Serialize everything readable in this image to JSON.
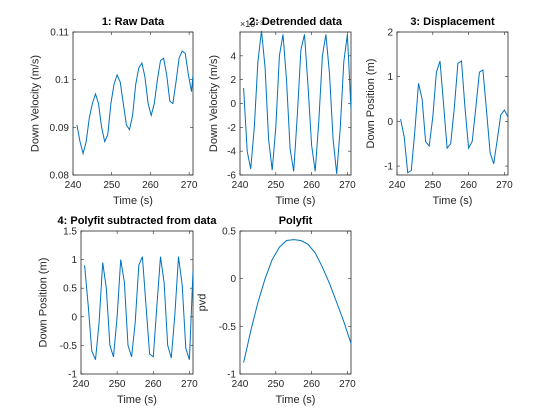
{
  "colors": {
    "series": "#0072BD",
    "axes": "#262626",
    "background": "#ffffff"
  },
  "chart_data": [
    {
      "type": "line",
      "title": "1: Raw Data",
      "xlabel": "Time (s)",
      "ylabel": "Down Velocity (m/s)",
      "xlim": [
        240,
        271
      ],
      "ylim": [
        0.08,
        0.11
      ],
      "xticks": [
        240,
        250,
        260,
        270
      ],
      "xtick_labels": [
        "240",
        "250",
        "260",
        "270"
      ],
      "yticks": [
        0.08,
        0.09,
        0.1,
        0.11
      ],
      "ytick_labels": [
        "0.08",
        "0.09",
        "0.1",
        "0.11"
      ],
      "exponent_label": "",
      "series": [
        {
          "x": [
            241,
            241.8,
            242.6,
            243.4,
            244.2,
            245,
            245.8,
            246.6,
            247.4,
            248.2,
            249,
            249.8,
            250.6,
            251.4,
            252.2,
            253,
            253.8,
            254.6,
            255.4,
            256.2,
            257,
            257.8,
            258.6,
            259.4,
            260.2,
            261,
            261.8,
            262.6,
            263.4,
            264.2,
            265,
            265.8,
            266.6,
            267.4,
            268.2,
            269,
            269.8,
            270.6,
            271
          ],
          "y": [
            0.0905,
            0.087,
            0.0845,
            0.087,
            0.092,
            0.095,
            0.097,
            0.095,
            0.09,
            0.087,
            0.0885,
            0.095,
            0.099,
            0.101,
            0.0995,
            0.095,
            0.0905,
            0.0895,
            0.0925,
            0.099,
            0.1025,
            0.1035,
            0.1005,
            0.095,
            0.0925,
            0.095,
            0.1,
            0.104,
            0.1045,
            0.101,
            0.0955,
            0.095,
            0.0995,
            0.1045,
            0.106,
            0.1055,
            0.101,
            0.0975,
            0.101
          ]
        }
      ]
    },
    {
      "type": "line",
      "title": "2: Detrended data",
      "xlabel": "Time (s)",
      "ylabel": "Down Velocity (m/s)",
      "xlim": [
        240,
        271
      ],
      "ylim": [
        -6,
        6
      ],
      "xticks": [
        240,
        250,
        260,
        270
      ],
      "xtick_labels": [
        "240",
        "250",
        "260",
        "270"
      ],
      "yticks": [
        -6,
        -4,
        -2,
        0,
        2,
        4
      ],
      "ytick_labels": [
        "-6",
        "-4",
        "-2",
        "0",
        "2",
        "4"
      ],
      "exponent_label": "×10⁻³",
      "series": [
        {
          "x": [
            241,
            242,
            243,
            244,
            245,
            246,
            247,
            248,
            249,
            250,
            251,
            252,
            253,
            254,
            255,
            256,
            257,
            258,
            259,
            260,
            261,
            262,
            263,
            264,
            265,
            266,
            267,
            268,
            269,
            270,
            271
          ],
          "y": [
            1.3,
            -4.0,
            -5.5,
            -2.0,
            3.5,
            6.1,
            3.0,
            -3.0,
            -5.6,
            -2.0,
            4.0,
            5.8,
            2.0,
            -3.8,
            -5.7,
            -1.0,
            4.5,
            5.8,
            1.5,
            -3.5,
            -5.7,
            -1.5,
            4.0,
            5.8,
            2.5,
            -3.0,
            -5.9,
            -2.0,
            3.5,
            5.8,
            -0.5
          ]
        }
      ]
    },
    {
      "type": "line",
      "title": "3: Displacement",
      "xlabel": "Time (s)",
      "ylabel": "Down Position (m)",
      "xlim": [
        240,
        271
      ],
      "ylim": [
        -1.2,
        2
      ],
      "xticks": [
        240,
        250,
        260,
        270
      ],
      "xtick_labels": [
        "240",
        "250",
        "260",
        "270"
      ],
      "yticks": [
        -1,
        0,
        1,
        2
      ],
      "ytick_labels": [
        "-1",
        "0",
        "1",
        "2"
      ],
      "exponent_label": "",
      "series": [
        {
          "x": [
            241,
            242,
            243,
            244,
            245,
            246,
            247,
            248,
            249,
            250,
            251,
            252,
            253,
            254,
            255,
            256,
            257,
            258,
            259,
            260,
            261,
            262,
            263,
            264,
            265,
            266,
            267,
            268,
            269,
            270,
            271
          ],
          "y": [
            0.05,
            -0.35,
            -1.15,
            -1.1,
            -0.2,
            0.85,
            0.5,
            -0.45,
            -0.55,
            0.1,
            1.1,
            1.35,
            0.4,
            -0.6,
            -0.5,
            0.3,
            1.3,
            1.35,
            0.3,
            -0.6,
            -0.45,
            0.3,
            1.1,
            1.15,
            0.25,
            -0.7,
            -0.95,
            -0.4,
            0.15,
            0.25,
            0.1
          ]
        }
      ]
    },
    {
      "type": "line",
      "title": "4: Polyfit subtracted from data",
      "xlabel": "Time (s)",
      "ylabel": "Down Position (m)",
      "xlim": [
        240,
        271
      ],
      "ylim": [
        -1,
        1.5
      ],
      "xticks": [
        240,
        250,
        260,
        270
      ],
      "xtick_labels": [
        "240",
        "250",
        "260",
        "270"
      ],
      "yticks": [
        -1,
        -0.5,
        0,
        0.5,
        1,
        1.5
      ],
      "ytick_labels": [
        "-1",
        "-0.5",
        "0",
        "0.5",
        "1",
        "1.5"
      ],
      "exponent_label": "",
      "series": [
        {
          "x": [
            241,
            242,
            243,
            244,
            245,
            246,
            247,
            248,
            249,
            250,
            251,
            252,
            253,
            254,
            255,
            256,
            257,
            258,
            259,
            260,
            261,
            262,
            263,
            264,
            265,
            266,
            267,
            268,
            269,
            270,
            271
          ],
          "y": [
            0.9,
            0.2,
            -0.6,
            -0.75,
            -0.1,
            0.95,
            0.5,
            -0.5,
            -0.7,
            0.0,
            1.0,
            0.6,
            -0.5,
            -0.7,
            -0.1,
            0.9,
            1.05,
            0.2,
            -0.65,
            -0.7,
            0.2,
            1.05,
            0.6,
            -0.5,
            -0.72,
            0.05,
            1.05,
            0.55,
            -0.55,
            -0.75,
            0.8
          ]
        }
      ]
    },
    {
      "type": "line",
      "title": "Polyfit",
      "xlabel": "Time (s)",
      "ylabel": "pvd",
      "xlim": [
        240,
        271
      ],
      "ylim": [
        -1,
        0.5
      ],
      "xticks": [
        240,
        250,
        260,
        270
      ],
      "xtick_labels": [
        "240",
        "250",
        "260",
        "270"
      ],
      "yticks": [
        -1,
        -0.5,
        0,
        0.5
      ],
      "ytick_labels": [
        "-1",
        "-0.5",
        "0",
        "0.5"
      ],
      "exponent_label": "",
      "series": [
        {
          "x": [
            241,
            243,
            245,
            247,
            249,
            251,
            253,
            255,
            257,
            259,
            261,
            263,
            265,
            267,
            269,
            271
          ],
          "y": [
            -0.88,
            -0.55,
            -0.25,
            0.0,
            0.2,
            0.33,
            0.4,
            0.41,
            0.4,
            0.36,
            0.27,
            0.12,
            -0.05,
            -0.25,
            -0.45,
            -0.68
          ]
        }
      ]
    }
  ]
}
